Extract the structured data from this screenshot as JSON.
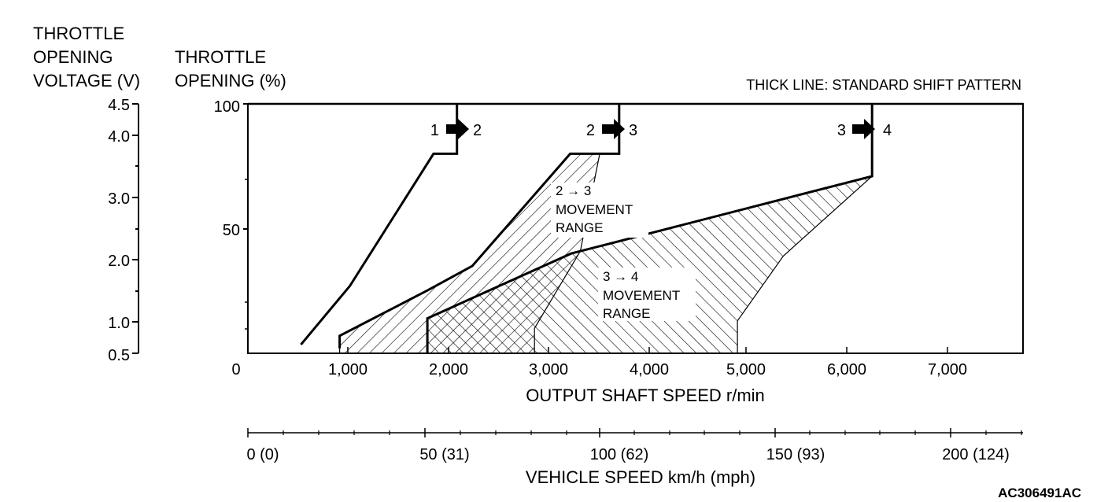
{
  "chart_data": {
    "type": "line",
    "title": "",
    "note": "THICK LINE: STANDARD SHIFT PATTERN",
    "figure_id": "AC306491AC",
    "left_axis_title": [
      "THROTTLE",
      "OPENING",
      "VOLTAGE (V)"
    ],
    "left_axis_ticks": [
      "4.5",
      "4.0",
      "3.0",
      "2.0",
      "1.0",
      "0.5"
    ],
    "y_axis_title": [
      "THROTTLE",
      "OPENING (%)"
    ],
    "y_ticks": [
      "100",
      "50",
      "0"
    ],
    "ylim": [
      0,
      100
    ],
    "xlabel": "OUTPUT SHAFT SPEED r/min",
    "x_ticks": [
      "1,000",
      "2,000",
      "3,000",
      "4,000",
      "5,000",
      "6,000",
      "7,000"
    ],
    "xlim": [
      0,
      7600
    ],
    "x2label": "VEHICLE SPEED km/h (mph)",
    "x2_ticks": [
      "0 (0)",
      "50 (31)",
      "100 (62)",
      "150 (93)",
      "200 (124)"
    ],
    "shift_labels": [
      {
        "from": "1",
        "to": "2"
      },
      {
        "from": "2",
        "to": "3"
      },
      {
        "from": "3",
        "to": "4"
      }
    ],
    "region_labels": [
      {
        "transition": "2 → 3",
        "lines": [
          "MOVEMENT",
          "RANGE"
        ]
      },
      {
        "transition": "3 → 4",
        "lines": [
          "MOVEMENT",
          "RANGE"
        ]
      }
    ],
    "series": [
      {
        "x": [
          520,
          520,
          1000,
          1820,
          2050,
          2050
        ],
        "y": [
          3.5,
          3.5,
          27,
          80,
          80,
          100
        ]
      },
      {
        "x": [
          900,
          900,
          1750,
          2200,
          3160,
          3640,
          3640
        ],
        "y": [
          2,
          7,
          25,
          35,
          80,
          80,
          100
        ]
      },
      {
        "x": [
          1760,
          1760,
          3170,
          6120,
          6120
        ],
        "y": [
          0,
          14,
          40,
          71,
          100
        ]
      }
    ],
    "movement_ranges": [
      {
        "transition": "2 → 3",
        "x": [
          900,
          900,
          1750,
          2200,
          3160,
          3450,
          3260,
          2810,
          2810
        ],
        "y": [
          0,
          7,
          25,
          35,
          80,
          80,
          41,
          10,
          0
        ]
      },
      {
        "transition": "3 → 4",
        "x": [
          1760,
          1760,
          3170,
          6120,
          5250,
          4800,
          4800
        ],
        "y": [
          0,
          14,
          40,
          71,
          39,
          13,
          0
        ]
      }
    ]
  }
}
